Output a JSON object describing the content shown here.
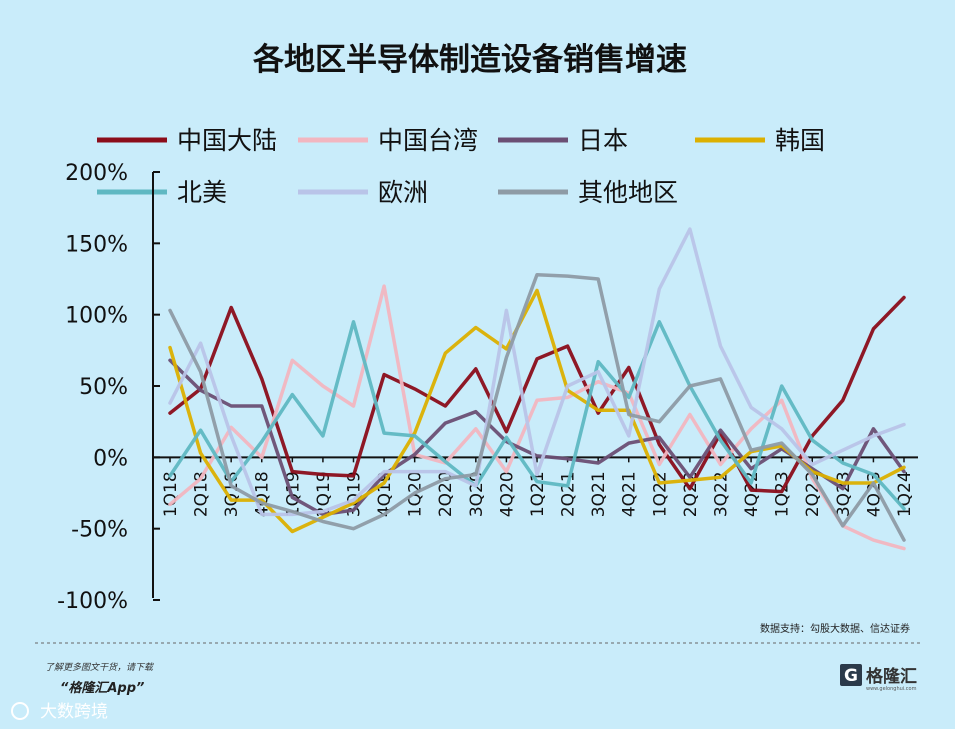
{
  "chart_data": {
    "type": "line",
    "title": "各地区半导体制造设备销售增速",
    "categories": [
      "1Q18",
      "2Q18",
      "3Q18",
      "4Q18",
      "1Q19",
      "2Q19",
      "3Q19",
      "4Q19",
      "1Q20",
      "2Q20",
      "3Q20",
      "4Q20",
      "1Q21",
      "2Q21",
      "3Q21",
      "4Q21",
      "1Q22",
      "2Q22",
      "3Q22",
      "4Q22",
      "1Q23",
      "2Q23",
      "3Q23",
      "4Q23",
      "1Q24"
    ],
    "y_tick_labels": [
      "200%",
      "150%",
      "100%",
      "50%",
      "0%",
      "-50%",
      "-100%"
    ],
    "y_tick_values": [
      200,
      150,
      100,
      50,
      0,
      -50,
      -100
    ],
    "ylim": [
      -100,
      200
    ],
    "legend_position": "top",
    "series": [
      {
        "name": "中国大陆",
        "color": "#8b0d1a",
        "values": [
          31,
          48,
          105,
          55,
          -10,
          -12,
          -13,
          58,
          48,
          36,
          62,
          18,
          69,
          78,
          31,
          63,
          9,
          -22,
          17,
          -23,
          -24,
          15,
          40,
          90,
          112
        ]
      },
      {
        "name": "中国台湾",
        "color": "#f2b6c0",
        "values": [
          -33,
          -15,
          21,
          0,
          68,
          50,
          36,
          120,
          2,
          -4,
          20,
          -10,
          40,
          42,
          53,
          45,
          -5,
          30,
          -5,
          20,
          40,
          -15,
          -48,
          -58,
          -64
        ]
      },
      {
        "name": "日本",
        "color": "#6b4f74",
        "values": [
          68,
          47,
          36,
          36,
          -28,
          -40,
          -37,
          -12,
          2,
          24,
          32,
          11,
          1,
          -1,
          -4,
          10,
          14,
          -14,
          19,
          -8,
          6,
          -8,
          -22,
          20,
          -10
        ]
      },
      {
        "name": "韩国",
        "color": "#dcb000",
        "values": [
          77,
          3,
          -30,
          -30,
          -52,
          -42,
          -32,
          -18,
          17,
          73,
          91,
          76,
          117,
          47,
          33,
          33,
          -18,
          -16,
          -14,
          4,
          8,
          -10,
          -18,
          -18,
          -7
        ]
      },
      {
        "name": "北美",
        "color": "#5fb8c2",
        "values": [
          -13,
          19,
          -17,
          11,
          44,
          15,
          95,
          17,
          15,
          -3,
          -20,
          14,
          -17,
          -20,
          67,
          42,
          95,
          50,
          12,
          -18,
          50,
          12,
          -4,
          -12,
          -36
        ]
      },
      {
        "name": "欧洲",
        "color": "#b9c4e8",
        "values": [
          38,
          80,
          15,
          -40,
          -40,
          -38,
          -30,
          -10,
          -10,
          -10,
          -20,
          103,
          -12,
          50,
          60,
          15,
          118,
          160,
          78,
          35,
          20,
          -5,
          5,
          15,
          23
        ]
      },
      {
        "name": "其他地区",
        "color": "#8e9ba5",
        "values": [
          103,
          60,
          -20,
          -32,
          -38,
          -45,
          -50,
          -40,
          -25,
          -15,
          -12,
          70,
          128,
          127,
          125,
          30,
          25,
          50,
          55,
          5,
          10,
          -12,
          -48,
          -18,
          -58
        ]
      }
    ]
  },
  "source_text": "数据支持：勾股大数据、信达证券",
  "footer": {
    "note": "了解更多图文干货，请下载",
    "app": "“格隆汇App”",
    "brand": "大数跨境"
  },
  "logo": {
    "letter": "G",
    "name": "格隆汇",
    "url": "www.gelonghui.com"
  }
}
